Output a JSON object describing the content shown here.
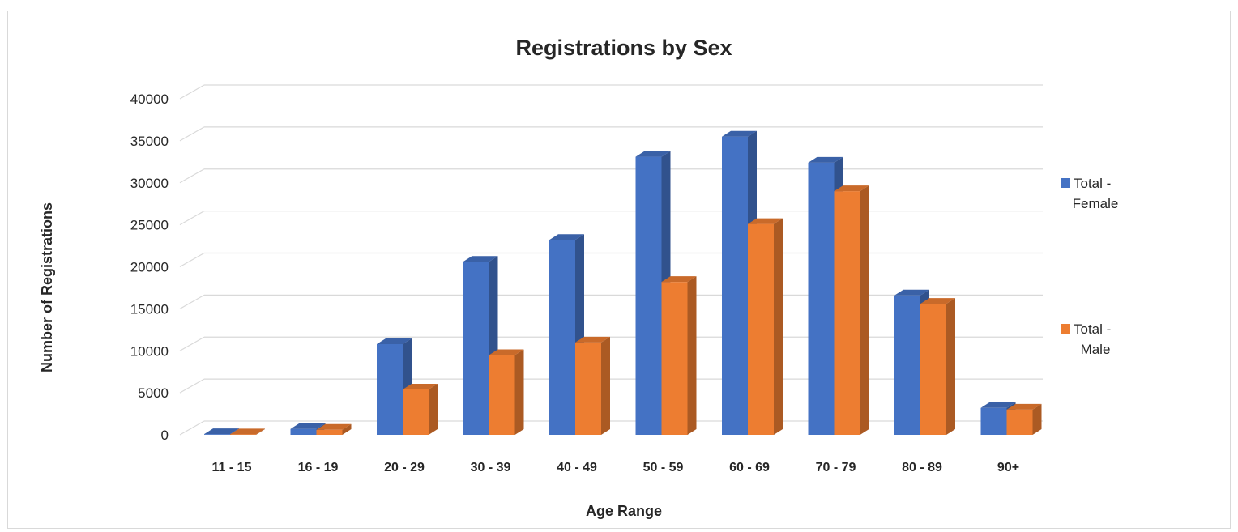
{
  "chart_data": {
    "type": "bar",
    "style": "3d-clustered-column",
    "title": "Registrations by Sex",
    "xlabel": "Age Range",
    "ylabel": "Number of Registrations",
    "categories": [
      "11 - 15",
      "16 - 19",
      "20 - 29",
      "30 - 39",
      "40 - 49",
      "50 - 59",
      "60 - 69",
      "70 - 79",
      "80 - 89",
      "90+"
    ],
    "series": [
      {
        "name": "Total - Female",
        "legend_lines": [
          "Total -",
          "Female"
        ],
        "color": "#4472C4",
        "values": [
          80,
          700,
          10800,
          20600,
          23200,
          33100,
          35500,
          32400,
          16600,
          3200
        ]
      },
      {
        "name": "Total - Male",
        "legend_lines": [
          "Total -",
          "Male"
        ],
        "color": "#ED7D31",
        "values": [
          60,
          600,
          5400,
          9500,
          11000,
          18200,
          25100,
          29000,
          15600,
          3000
        ]
      }
    ],
    "ylim": [
      0,
      40000
    ],
    "yticks": [
      0,
      5000,
      10000,
      15000,
      20000,
      25000,
      30000,
      35000,
      40000
    ],
    "grid": true,
    "legend_position": "right"
  }
}
